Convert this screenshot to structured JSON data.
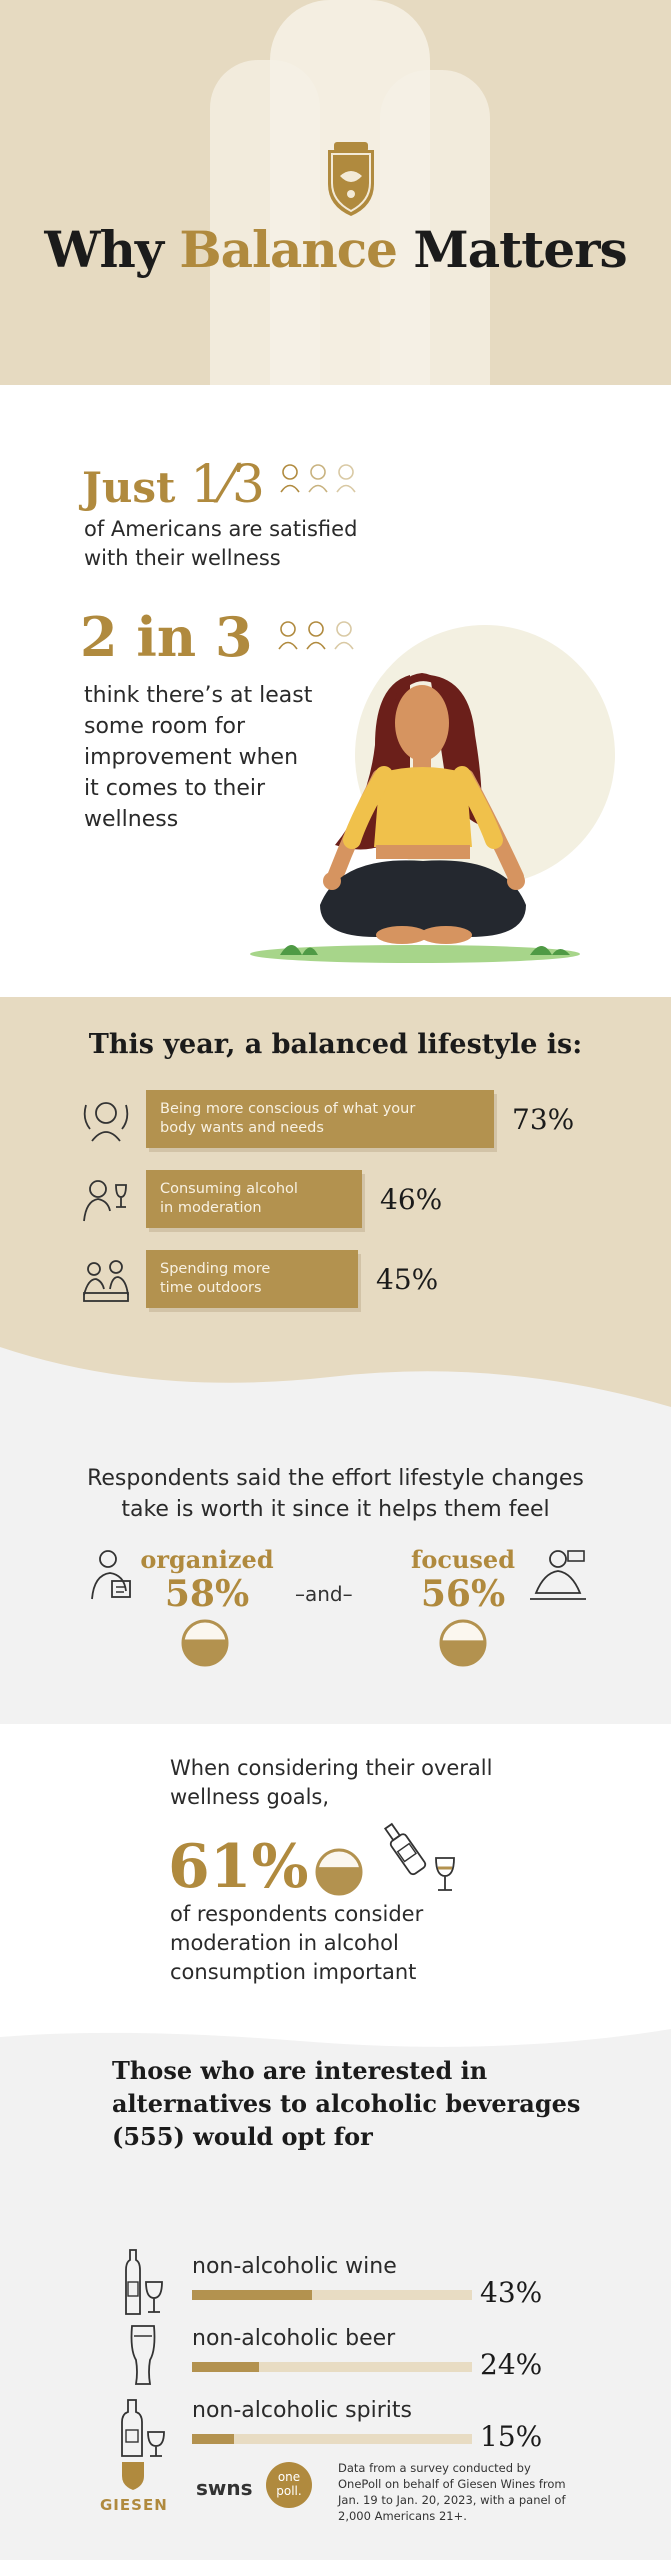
{
  "header": {
    "title_part1": "Why ",
    "title_part2": "Balance",
    "title_part3": " Matters"
  },
  "stats": {
    "stat1_prefix": "Just",
    "stat1_fraction": "1⁄3",
    "stat1_line1": "of Americans are satisfied",
    "stat1_line2": "with their wellness",
    "stat2_value": "2 in 3",
    "stat2_line1": "think there’s at least",
    "stat2_line2": "some room for",
    "stat2_line3": "improvement when",
    "stat2_line4": "it comes to their",
    "stat2_line5": "wellness"
  },
  "balanced": {
    "title": "This year, a balanced lifestyle is:",
    "items": [
      {
        "line1": "Being more conscious of what your",
        "line2": "body wants and needs",
        "pct": "73%"
      },
      {
        "line1": "Consuming alcohol",
        "line2": "in moderation",
        "pct": "46%"
      },
      {
        "line1": "Spending more",
        "line2": "time outdoors",
        "pct": "45%"
      }
    ]
  },
  "feel": {
    "line1": "Respondents said the effort lifestyle changes",
    "line2": "take is worth it since it helps them feel",
    "left_word": "organized",
    "left_pct": "58%",
    "and": "–and–",
    "right_word": "focused",
    "right_pct": "56%",
    "left_fill": 0.58,
    "right_fill": 0.56
  },
  "wellness": {
    "line1": "When considering their overall",
    "line2": "wellness goals,",
    "pct": "61%",
    "line3": "of respondents consider",
    "line4": "moderation in alcohol",
    "line5": "consumption important",
    "fill": 0.61
  },
  "alternatives": {
    "title_line1": "Those who are interested in",
    "title_line2": "alternatives to alcoholic beverages",
    "title_line3": "(555) would opt for",
    "items": [
      {
        "label": "non-alcoholic wine",
        "pct": "43%",
        "value": 43
      },
      {
        "label": "non-alcoholic beer",
        "pct": "24%",
        "value": 24
      },
      {
        "label": "non-alcoholic spirits",
        "pct": "15%",
        "value": 15
      }
    ]
  },
  "footer": {
    "logo1": "GIESEN",
    "logo2": "swns",
    "logo3_line1": "one",
    "logo3_line2": "poll.",
    "note_line1": "Data from a survey conducted by",
    "note_line2": "OnePoll on behalf of Giesen Wines from",
    "note_line3": "Jan. 19 to Jan. 20, 2023, with a panel of",
    "note_line4": "2,000 Americans 21+."
  },
  "colors": {
    "gold": "#b08a3e",
    "beige": "#e6dac1",
    "bar": "#b3924f",
    "grey_bg": "#f2f2f2"
  }
}
